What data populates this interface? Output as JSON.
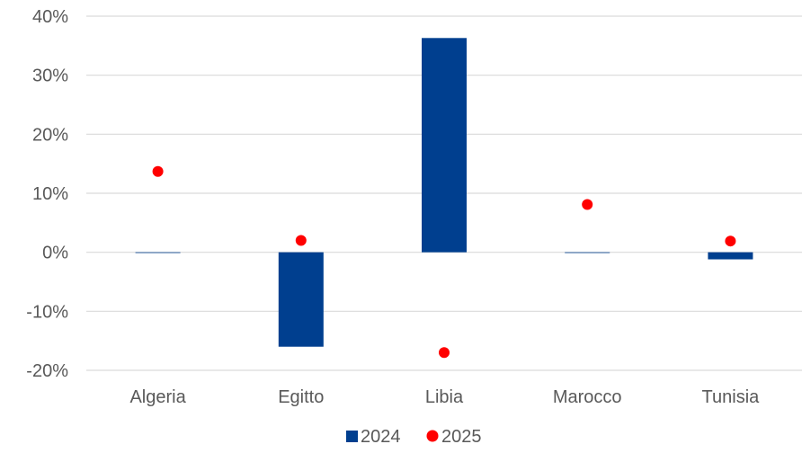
{
  "chart_data": {
    "type": "bar",
    "categories": [
      "Algeria",
      "Egitto",
      "Libia",
      "Marocco",
      "Tunisia"
    ],
    "series": [
      {
        "name": "2024",
        "kind": "bar",
        "color": "#003f8f",
        "values": [
          0.0,
          -16.0,
          36.3,
          0.0,
          -1.2
        ]
      },
      {
        "name": "2025",
        "kind": "point",
        "color": "#ff0000",
        "values": [
          13.7,
          2.0,
          -17.0,
          8.1,
          1.9
        ]
      }
    ],
    "ylim": [
      -20,
      40
    ],
    "yticks": [
      -20,
      -10,
      0,
      10,
      20,
      30,
      40
    ],
    "ytick_labels": [
      "-20%",
      "-10%",
      "0%",
      "10%",
      "20%",
      "30%",
      "40%"
    ],
    "grid": true,
    "legend": "bottom-center",
    "title": "",
    "xlabel": "",
    "ylabel": ""
  }
}
